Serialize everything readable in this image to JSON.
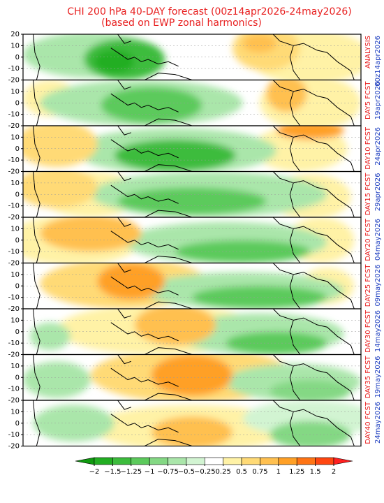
{
  "chart_data": {
    "type": "contour-map",
    "title": "CHI 200 hPa 40-DAY forecast (00z14apr2026-24may2026)",
    "subtitle": "(based on EWP zonal harmonics)",
    "ylim": [
      -20,
      20
    ],
    "yticks": [
      20,
      10,
      0,
      -10,
      -20
    ],
    "panels": [
      {
        "label": "ANALYSIS",
        "date": "00z14apr2026"
      },
      {
        "label": "DAY5 FCST",
        "date": "19apr2026"
      },
      {
        "label": "DAY10 FCST",
        "date": "24apr2026"
      },
      {
        "label": "DAY15 FCST",
        "date": "29apr2026"
      },
      {
        "label": "DAY20 FCST",
        "date": "04may2026"
      },
      {
        "label": "DAY25 FCST",
        "date": "09may2026"
      },
      {
        "label": "DAY30 FCST",
        "date": "14may2026"
      },
      {
        "label": "DAY35 FCST",
        "date": "19may2026"
      },
      {
        "label": "DAY40 FCST",
        "date": "24may2026"
      }
    ],
    "colorbar": {
      "levels": [
        {
          "value": -2,
          "label": "−2"
        },
        {
          "value": -1.5,
          "label": "−1.5"
        },
        {
          "value": -1.25,
          "label": "−1.25"
        },
        {
          "value": -1,
          "label": "−1"
        },
        {
          "value": -0.75,
          "label": "−0.75"
        },
        {
          "value": -0.5,
          "label": "−0.5"
        },
        {
          "value": -0.25,
          "label": "−0.25"
        },
        0.25,
        0.5,
        0.75,
        1,
        1.25,
        1.5,
        2
      ],
      "colors": [
        "#109a10",
        "#22ae22",
        "#3cbc3c",
        "#5cca5c",
        "#84d884",
        "#aae6aa",
        "#d2f4d2",
        "#ffffff",
        "#fff2a6",
        "#ffda76",
        "#ffc050",
        "#ffa026",
        "#ff7414",
        "#ff4610",
        "#ff2020"
      ]
    }
  }
}
